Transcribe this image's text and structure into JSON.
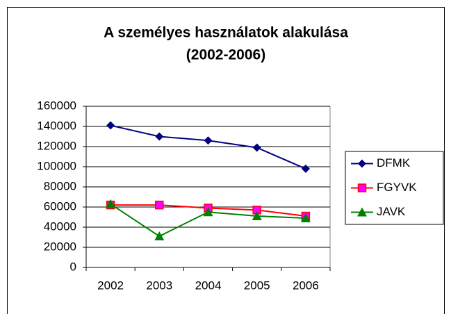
{
  "chart_data": {
    "type": "line",
    "title": "A személyes használatok alakulása",
    "subtitle": "(2002-2006)",
    "categories": [
      "2002",
      "2003",
      "2004",
      "2005",
      "2006"
    ],
    "series": [
      {
        "name": "DFMK",
        "color": "#000080",
        "marker": "diamond",
        "values": [
          141000,
          130000,
          126000,
          119000,
          98000
        ]
      },
      {
        "name": "FGYVK",
        "color": "#ff0000",
        "marker": "square",
        "values": [
          62000,
          62000,
          59000,
          57000,
          51000
        ]
      },
      {
        "name": "JAVK",
        "color": "#008000",
        "marker": "triangle",
        "values": [
          63000,
          31000,
          55000,
          51000,
          49000
        ]
      }
    ],
    "ylim": [
      0,
      160000
    ],
    "yticks": [
      0,
      20000,
      40000,
      60000,
      80000,
      100000,
      120000,
      140000,
      160000
    ],
    "grid": true,
    "legend": "right"
  }
}
